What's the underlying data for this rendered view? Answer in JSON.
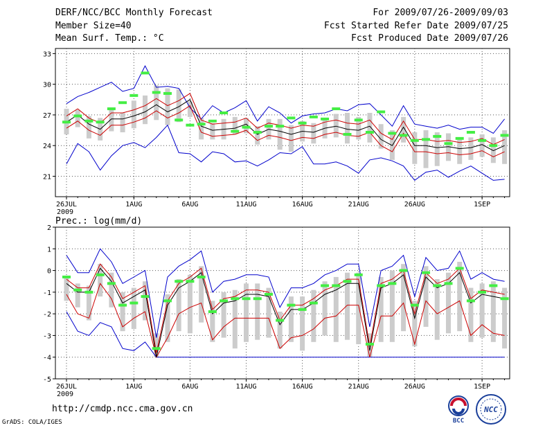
{
  "header": {
    "title": "DERF/NCC/BCC Monthly Forecast",
    "member_size": "Member Size=40",
    "variable": "Mean Surf. Temp.: °C",
    "period": "For 2009/07/26-2009/09/03",
    "started": "Fcst Started Refer Date 2009/07/25",
    "produced": "Fcst Produced Date 2009/07/26"
  },
  "footer": {
    "url": "http://cmdp.ncc.cma.gov.cn",
    "grads": "GrADS: COLA/IGES",
    "logo_bcc": "BCC",
    "logo_ncc": "NCC"
  },
  "colors": {
    "mean": "#000000",
    "spread": "#cc0000",
    "envelope": "#0000cc",
    "box": "#cccccc",
    "median": "#44ee44",
    "grid": "#555555"
  },
  "chart_data": [
    {
      "type": "line",
      "title": "Mean Surf. Temp.: °C",
      "x_labels": [
        "26JUL",
        "1AUG",
        "6AUG",
        "11AUG",
        "16AUG",
        "21AUG",
        "26AUG",
        "1SEP"
      ],
      "x_label_days": [
        0,
        6,
        11,
        16,
        21,
        26,
        31,
        37
      ],
      "x_year": "2009",
      "x_range": [
        0,
        39
      ],
      "yticks": [
        21,
        24,
        27,
        30,
        33
      ],
      "ylim": [
        19,
        33.5
      ],
      "series": [
        {
          "name": "mean",
          "values": [
            26.3,
            27.0,
            26.1,
            25.6,
            26.6,
            26.6,
            26.9,
            27.3,
            28.0,
            27.3,
            27.8,
            28.5,
            25.9,
            25.5,
            25.6,
            25.7,
            26.1,
            25.1,
            25.6,
            25.4,
            25.1,
            25.4,
            25.3,
            25.7,
            25.9,
            25.6,
            25.5,
            25.9,
            24.6,
            24.0,
            25.8,
            24.0,
            24.0,
            23.8,
            23.9,
            23.7,
            23.8,
            24.1,
            23.5,
            24.0
          ]
        },
        {
          "name": "upper",
          "values": [
            26.9,
            27.6,
            26.7,
            26.2,
            27.2,
            27.2,
            27.5,
            27.9,
            28.6,
            27.9,
            28.4,
            29.1,
            26.5,
            26.1,
            26.2,
            26.3,
            26.7,
            25.7,
            26.2,
            26.0,
            25.7,
            26.0,
            25.9,
            26.3,
            26.5,
            26.2,
            26.1,
            26.5,
            25.2,
            24.6,
            26.4,
            24.6,
            24.6,
            24.4,
            24.5,
            24.3,
            24.4,
            24.7,
            24.1,
            24.6
          ]
        },
        {
          "name": "lower",
          "values": [
            25.7,
            26.4,
            25.5,
            25.0,
            26.0,
            26.0,
            26.3,
            26.7,
            27.4,
            26.7,
            27.2,
            27.9,
            25.3,
            24.9,
            25.0,
            25.1,
            25.5,
            24.5,
            25.0,
            24.8,
            24.5,
            24.8,
            24.7,
            25.1,
            25.3,
            25.0,
            24.9,
            25.3,
            24.0,
            23.4,
            25.2,
            23.4,
            23.4,
            23.2,
            23.3,
            23.1,
            23.2,
            23.5,
            22.9,
            23.4
          ]
        },
        {
          "name": "max",
          "values": [
            28.1,
            28.8,
            29.2,
            29.7,
            30.2,
            29.3,
            29.6,
            31.8,
            29.7,
            29.8,
            29.6,
            27.7,
            26.6,
            27.9,
            27.2,
            27.7,
            28.4,
            26.4,
            27.8,
            27.2,
            26.2,
            26.9,
            27.1,
            27.2,
            27.6,
            27.4,
            28.0,
            28.1,
            27.0,
            25.9,
            27.9,
            26.1,
            25.9,
            25.7,
            26.0,
            25.6,
            25.8,
            25.8,
            25.2,
            26.6
          ]
        },
        {
          "name": "min",
          "values": [
            22.2,
            24.2,
            23.4,
            21.6,
            23.0,
            24.0,
            24.3,
            23.8,
            24.8,
            26.0,
            23.3,
            23.2,
            22.4,
            23.4,
            23.2,
            22.4,
            22.5,
            22.0,
            22.6,
            23.3,
            23.2,
            23.9,
            22.2,
            22.2,
            22.4,
            22.0,
            21.3,
            22.6,
            22.8,
            22.5,
            22.0,
            20.6,
            21.4,
            21.6,
            20.9,
            21.5,
            22.0,
            21.3,
            20.6,
            20.7
          ]
        },
        {
          "name": "box_top",
          "values": [
            27.6,
            27.5,
            26.9,
            26.7,
            27.6,
            27.2,
            28.4,
            28.9,
            29.9,
            29.6,
            29.5,
            28.3,
            26.7,
            26.2,
            26.6,
            26.8,
            26.7,
            25.9,
            26.6,
            26.6,
            26.0,
            26.4,
            26.2,
            26.5,
            27.1,
            27.2,
            26.8,
            27.2,
            26.1,
            25.5,
            26.8,
            25.3,
            25.5,
            25.3,
            25.2,
            24.7,
            24.8,
            25.1,
            24.8,
            25.5
          ]
        },
        {
          "name": "box_bottom",
          "values": [
            25.1,
            25.8,
            24.7,
            24.5,
            25.4,
            25.3,
            25.7,
            26.1,
            26.5,
            26.0,
            26.3,
            26.8,
            24.6,
            24.6,
            24.6,
            25.1,
            25.2,
            24.1,
            24.6,
            23.6,
            23.4,
            24.4,
            24.2,
            24.7,
            24.8,
            24.2,
            24.6,
            24.3,
            23.7,
            22.6,
            24.3,
            22.2,
            21.8,
            22.0,
            22.5,
            22.2,
            22.6,
            22.9,
            22.3,
            22.2
          ]
        },
        {
          "name": "median",
          "values": [
            26.3,
            26.9,
            26.4,
            26.3,
            27.6,
            28.2,
            28.9,
            31.1,
            29.2,
            29.1,
            26.5,
            26.0,
            26.1,
            26.4,
            27.2,
            25.4,
            25.8,
            25.3,
            25.9,
            25.9,
            26.7,
            26.2,
            26.8,
            26.6,
            27.6,
            25.1,
            26.5,
            25.3,
            27.3,
            25.2,
            25.0,
            24.5,
            24.6,
            24.9,
            24.2,
            24.7,
            25.3,
            24.5,
            24.0,
            25.0
          ]
        }
      ]
    },
    {
      "type": "line",
      "title": "Prec.: log(mm/d)",
      "x_labels": [
        "26JUL",
        "1AUG",
        "6AUG",
        "11AUG",
        "16AUG",
        "21AUG",
        "26AUG",
        "1SEP"
      ],
      "x_label_days": [
        0,
        6,
        11,
        16,
        21,
        26,
        31,
        37
      ],
      "x_year": "2009",
      "x_range": [
        0,
        39
      ],
      "yticks": [
        -5,
        -4,
        -3,
        -2,
        -1,
        0,
        1,
        2
      ],
      "ylim": [
        -5,
        2
      ],
      "series": [
        {
          "name": "mean",
          "values": [
            -0.6,
            -1.0,
            -1.0,
            0.1,
            -0.5,
            -1.5,
            -1.2,
            -0.9,
            -4.0,
            -1.6,
            -0.8,
            -0.5,
            -0.1,
            -2.0,
            -1.5,
            -1.4,
            -1.1,
            -1.1,
            -1.2,
            -2.5,
            -1.8,
            -1.8,
            -1.5,
            -1.1,
            -0.9,
            -0.6,
            -0.6,
            -3.7,
            -0.8,
            -0.6,
            -0.2,
            -2.2,
            -0.3,
            -0.8,
            -0.6,
            -0.1,
            -1.5,
            -1.1,
            -1.2,
            -1.3
          ]
        },
        {
          "name": "upper",
          "values": [
            -0.4,
            -0.8,
            -0.8,
            0.3,
            -0.3,
            -1.3,
            -1.0,
            -0.7,
            -3.8,
            -1.4,
            -0.6,
            -0.3,
            0.1,
            -1.8,
            -1.3,
            -1.2,
            -0.9,
            -0.9,
            -1.0,
            -2.3,
            -1.6,
            -1.6,
            -1.3,
            -0.9,
            -0.7,
            -0.4,
            -0.4,
            -3.5,
            -0.6,
            -0.4,
            0.0,
            -2.0,
            -0.1,
            -0.6,
            -0.4,
            0.1,
            -1.3,
            -0.9,
            -1.0,
            -1.1
          ]
        },
        {
          "name": "lower",
          "values": [
            -1.1,
            -2.0,
            -2.2,
            -0.6,
            -1.3,
            -2.6,
            -2.2,
            -1.9,
            -4.0,
            -3.1,
            -2.0,
            -1.7,
            -1.5,
            -3.2,
            -2.6,
            -2.2,
            -2.2,
            -2.2,
            -2.2,
            -3.6,
            -3.1,
            -3.0,
            -2.7,
            -2.2,
            -2.1,
            -1.6,
            -1.6,
            -4.0,
            -2.1,
            -2.1,
            -1.5,
            -3.4,
            -1.4,
            -2.0,
            -1.7,
            -1.4,
            -3.0,
            -2.5,
            -2.9,
            -3.0
          ]
        },
        {
          "name": "max",
          "values": [
            0.7,
            -0.1,
            -0.1,
            1.0,
            0.4,
            -0.6,
            -0.3,
            0.0,
            -3.1,
            -0.3,
            0.2,
            0.5,
            0.9,
            -1.0,
            -0.5,
            -0.4,
            -0.2,
            -0.2,
            -0.3,
            -1.7,
            -0.8,
            -0.8,
            -0.6,
            -0.2,
            0.0,
            0.3,
            0.3,
            -2.6,
            0.0,
            0.2,
            0.7,
            -1.2,
            0.6,
            0.0,
            0.1,
            0.9,
            -0.4,
            -0.1,
            -0.4,
            -0.5
          ]
        },
        {
          "name": "min",
          "values": [
            -1.9,
            -2.8,
            -3.0,
            -2.4,
            -2.6,
            -3.6,
            -3.7,
            -3.3,
            -4.0,
            -4.0,
            -4.0,
            -4.0,
            -4.0,
            -4.0,
            -4.0,
            -4.0,
            -4.0,
            -4.0,
            -4.0,
            -4.0,
            -4.0,
            -4.0,
            -4.0,
            -4.0,
            -4.0,
            -4.0,
            -4.0,
            -4.0,
            -4.0,
            -4.0,
            -4.0,
            -4.0,
            -4.0,
            -4.0,
            -4.0,
            -4.0,
            -4.0,
            -4.0,
            -4.0,
            -4.0
          ]
        },
        {
          "name": "box_top",
          "values": [
            -0.3,
            -0.6,
            -0.7,
            0.3,
            -0.1,
            -1.0,
            -0.8,
            -0.5,
            -2.9,
            -1.1,
            -0.4,
            -0.2,
            0.2,
            -1.4,
            -1.0,
            -0.9,
            -0.6,
            -0.6,
            -0.8,
            -1.9,
            -1.2,
            -1.2,
            -0.9,
            -0.5,
            -0.3,
            -0.1,
            -0.1,
            -2.9,
            -0.3,
            0.0,
            0.3,
            -1.4,
            0.2,
            -0.4,
            -0.1,
            0.4,
            -0.8,
            -0.6,
            -0.5,
            -0.8
          ]
        },
        {
          "name": "box_bottom",
          "values": [
            -1.4,
            -1.7,
            -2.3,
            -1.2,
            -1.7,
            -2.8,
            -2.7,
            -2.3,
            -4.0,
            -3.3,
            -2.8,
            -2.9,
            -2.4,
            -3.3,
            -3.1,
            -3.6,
            -3.3,
            -3.2,
            -3.1,
            -3.6,
            -3.3,
            -3.7,
            -3.3,
            -3.0,
            -3.3,
            -3.2,
            -3.4,
            -4.0,
            -3.3,
            -3.3,
            -2.8,
            -3.5,
            -2.6,
            -3.2,
            -2.9,
            -2.8,
            -3.3,
            -3.1,
            -3.3,
            -3.6
          ]
        },
        {
          "name": "median",
          "values": [
            -0.3,
            -0.9,
            -1.0,
            -0.2,
            -0.6,
            -1.6,
            -1.5,
            -1.2,
            -3.6,
            -1.4,
            -0.5,
            -0.5,
            -0.3,
            -1.9,
            -1.4,
            -1.3,
            -1.3,
            -1.3,
            -1.1,
            -2.3,
            -1.6,
            -1.8,
            -1.5,
            -0.7,
            -0.7,
            -0.5,
            -0.2,
            -3.4,
            -0.7,
            -0.6,
            0.0,
            -1.6,
            -0.1,
            -0.7,
            -0.6,
            0.1,
            -1.4,
            -1.0,
            -0.7,
            -1.3
          ]
        }
      ]
    }
  ]
}
